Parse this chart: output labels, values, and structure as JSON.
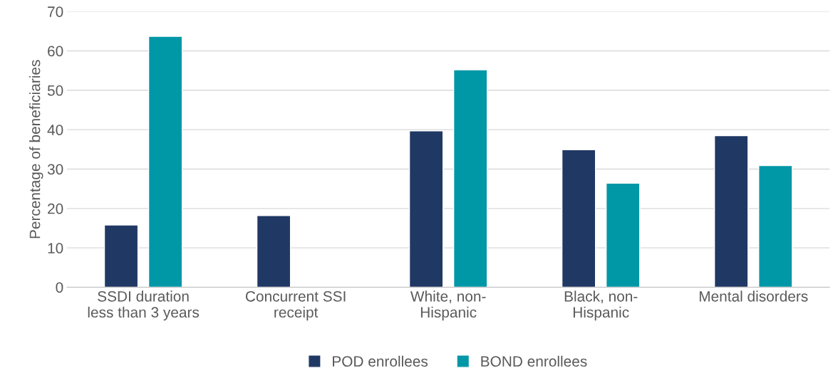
{
  "chart_data": {
    "type": "bar",
    "ylabel": "Percentage of beneficiaries",
    "categories": [
      "SSDI duration\nless than 3 years",
      "Concurrent SSI\nreceipt",
      "White, non-\nHispanic",
      "Black, non-\nHispanic",
      "Mental disorders"
    ],
    "series": [
      {
        "name": "POD enrollees",
        "color": "#203864",
        "values": [
          15.8,
          18.2,
          39.7,
          34.9,
          38.5
        ]
      },
      {
        "name": "BOND enrollees",
        "color": "#0097a7",
        "values": [
          63.7,
          null,
          55.2,
          26.4,
          30.9
        ]
      }
    ],
    "ylim": [
      0,
      70
    ],
    "yticks": [
      0,
      10,
      20,
      30,
      40,
      50,
      60,
      70
    ],
    "grid": "y",
    "legend": "bottom"
  }
}
